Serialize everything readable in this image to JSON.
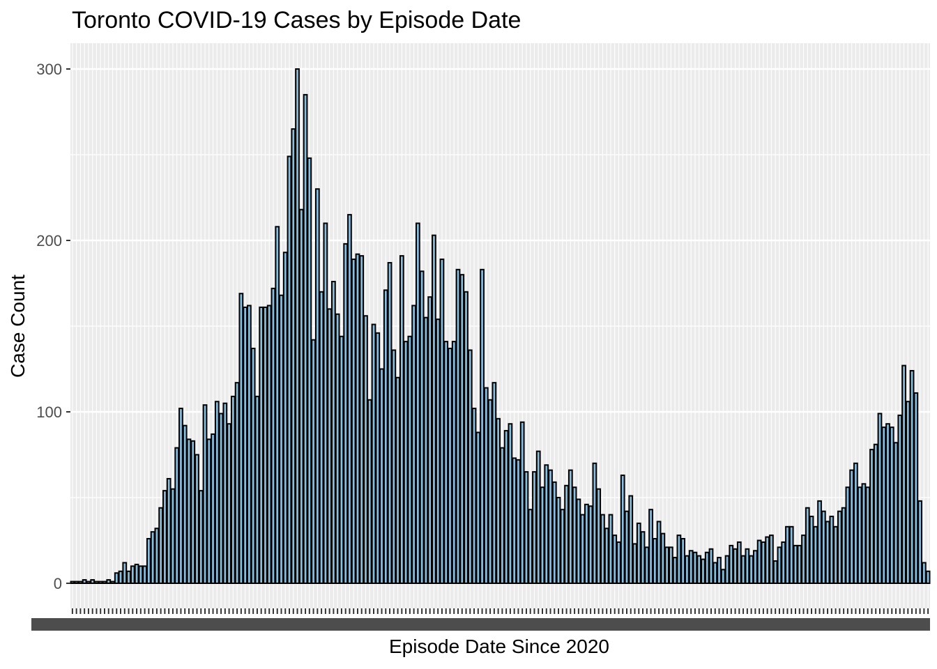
{
  "chart_data": {
    "type": "bar",
    "title": "Toronto COVID-19 Cases by Episode Date",
    "xlabel": "Episode Date Since 2020",
    "ylabel": "Case Count",
    "ylim": [
      -15,
      315
    ],
    "yticks": [
      0,
      100,
      200,
      300
    ],
    "x_tick_labels_legible": false,
    "bar_fill": "#87BFE0",
    "bar_stroke": "#000000",
    "panel_background": "#EBEBEB",
    "grid": true,
    "values": [
      1,
      1,
      1,
      2,
      1,
      2,
      1,
      1,
      1,
      2,
      1,
      6,
      7,
      12,
      7,
      10,
      11,
      10,
      10,
      26,
      30,
      32,
      44,
      54,
      61,
      55,
      79,
      102,
      92,
      84,
      83,
      75,
      54,
      104,
      84,
      87,
      106,
      99,
      105,
      93,
      109,
      117,
      169,
      161,
      162,
      137,
      109,
      161,
      161,
      162,
      172,
      208,
      168,
      193,
      249,
      265,
      300,
      218,
      285,
      248,
      142,
      230,
      170,
      210,
      160,
      176,
      157,
      144,
      198,
      215,
      189,
      192,
      191,
      156,
      107,
      151,
      146,
      125,
      171,
      187,
      136,
      120,
      191,
      141,
      144,
      162,
      210,
      182,
      155,
      167,
      203,
      154,
      189,
      141,
      137,
      141,
      183,
      180,
      170,
      136,
      102,
      88,
      183,
      114,
      107,
      117,
      96,
      79,
      89,
      93,
      73,
      72,
      94,
      65,
      43,
      65,
      77,
      56,
      69,
      66,
      59,
      50,
      43,
      57,
      66,
      56,
      49,
      40,
      46,
      45,
      70,
      55,
      40,
      32,
      40,
      28,
      24,
      63,
      42,
      51,
      23,
      35,
      30,
      21,
      43,
      26,
      36,
      29,
      21,
      21,
      15,
      28,
      26,
      16,
      19,
      18,
      16,
      14,
      18,
      20,
      12,
      15,
      8,
      16,
      22,
      20,
      24,
      16,
      20,
      16,
      19,
      25,
      24,
      27,
      28,
      13,
      21,
      24,
      33,
      33,
      22,
      22,
      28,
      44,
      39,
      33,
      48,
      42,
      36,
      39,
      33,
      42,
      44,
      56,
      66,
      70,
      56,
      58,
      56,
      78,
      81,
      99,
      91,
      93,
      91,
      82,
      98,
      127,
      106,
      124,
      111,
      48,
      12,
      7
    ]
  }
}
